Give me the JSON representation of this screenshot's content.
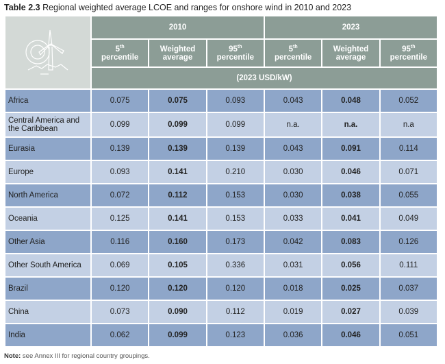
{
  "caption": {
    "label": "Table 2.3",
    "text": "Regional weighted average LCOE and ranges for onshore wind in 2010 and 2023"
  },
  "table": {
    "years": [
      "2010",
      "2023"
    ],
    "columns": [
      {
        "sup": "th",
        "base": "5",
        "line2": "percentile"
      },
      {
        "line1": "Weighted",
        "line2": "average"
      },
      {
        "sup": "th",
        "base": "95",
        "line2": "percentile"
      },
      {
        "sup": "th",
        "base": "5",
        "line2": "percentile"
      },
      {
        "line1": "Weighted",
        "line2": "average"
      },
      {
        "sup": "th",
        "base": "95",
        "line2": "percentile"
      }
    ],
    "unit": "(2023 USD/kW)",
    "rows": [
      {
        "region": "Africa",
        "values": [
          "0.075",
          "0.075",
          "0.093",
          "0.043",
          "0.048",
          "0.052"
        ]
      },
      {
        "region": "Central America and the Caribbean",
        "values": [
          "0.099",
          "0.099",
          "0.099",
          "n.a.",
          "n.a.",
          "n.a"
        ]
      },
      {
        "region": "Eurasia",
        "values": [
          "0.139",
          "0.139",
          "0.139",
          "0.043",
          "0.091",
          "0.114"
        ]
      },
      {
        "region": "Europe",
        "values": [
          "0.093",
          "0.141",
          "0.210",
          "0.030",
          "0.046",
          "0.071"
        ]
      },
      {
        "region": "North America",
        "values": [
          "0.072",
          "0.112",
          "0.153",
          "0.030",
          "0.038",
          "0.055"
        ]
      },
      {
        "region": "Oceania",
        "values": [
          "0.125",
          "0.141",
          "0.153",
          "0.033",
          "0.041",
          "0.049"
        ]
      },
      {
        "region": "Other Asia",
        "values": [
          "0.116",
          "0.160",
          "0.173",
          "0.042",
          "0.083",
          "0.126"
        ]
      },
      {
        "region": "Other South America",
        "values": [
          "0.069",
          "0.105",
          "0.336",
          "0.031",
          "0.056",
          "0.111"
        ]
      },
      {
        "region": "Brazil",
        "values": [
          "0.120",
          "0.120",
          "0.120",
          "0.018",
          "0.025",
          "0.037"
        ]
      },
      {
        "region": "China",
        "values": [
          "0.073",
          "0.090",
          "0.112",
          "0.019",
          "0.027",
          "0.039"
        ]
      },
      {
        "region": "India",
        "values": [
          "0.062",
          "0.099",
          "0.123",
          "0.036",
          "0.046",
          "0.051"
        ]
      }
    ]
  },
  "note": {
    "label": "Note:",
    "text": "see Annex III for regional country groupings."
  },
  "icon": "wind-turbine-icon",
  "colors": {
    "header": "#8c9d96",
    "row_dark": "#8ea6c9",
    "row_light": "#c3d0e4",
    "icon_bg": "#d3d9d6"
  }
}
